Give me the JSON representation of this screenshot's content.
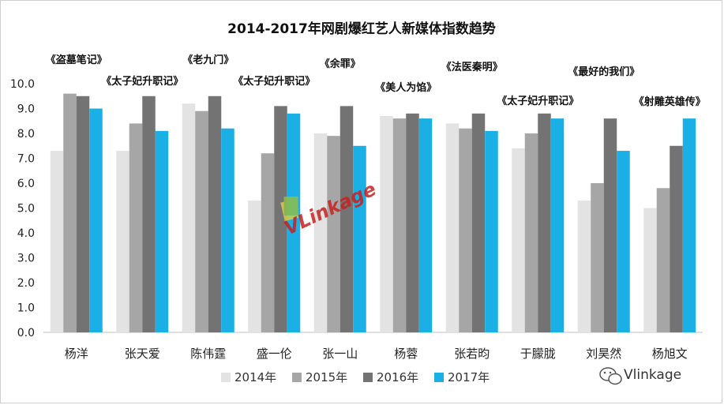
{
  "chart_data": {
    "type": "bar",
    "title": "2014-2017年网剧爆红艺人新媒体指数趋势",
    "categories": [
      "杨洋",
      "张天爱",
      "陈伟霆",
      "盛一伦",
      "张一山",
      "杨蓉",
      "张若昀",
      "于朦胧",
      "刘昊然",
      "杨旭文"
    ],
    "annotations": [
      "《盗墓笔记》",
      "《太子妃升职记》",
      "《老九门》",
      "《太子妃升职记》",
      "《余罪》",
      "《美人为馅》",
      "《法医秦明》",
      "《太子妃升职记》",
      "《最好的我们》",
      "《射雕英雄传》"
    ],
    "series": [
      {
        "name": "2014年",
        "color": "#e3e3e3",
        "values": [
          7.3,
          7.3,
          9.2,
          5.3,
          8.0,
          8.7,
          8.4,
          7.4,
          5.3,
          5.0
        ]
      },
      {
        "name": "2015年",
        "color": "#a6a6a6",
        "values": [
          9.6,
          8.4,
          8.9,
          7.2,
          7.9,
          8.6,
          8.2,
          8.0,
          6.0,
          5.8
        ]
      },
      {
        "name": "2016年",
        "color": "#737373",
        "values": [
          9.5,
          9.5,
          9.5,
          9.1,
          9.1,
          8.8,
          8.8,
          8.8,
          8.6,
          7.5
        ]
      },
      {
        "name": "2017年",
        "color": "#1ab0e5",
        "values": [
          9.0,
          8.1,
          8.2,
          8.8,
          7.5,
          8.6,
          8.1,
          8.6,
          7.3,
          8.6
        ]
      }
    ],
    "yticks": [
      "0.0",
      "1.0",
      "2.0",
      "3.0",
      "4.0",
      "5.0",
      "6.0",
      "7.0",
      "8.0",
      "9.0",
      "10.0"
    ],
    "ylim": [
      0,
      10
    ],
    "grid": false,
    "legend_position": "bottom"
  },
  "watermark": {
    "center_logo_text": "VLinkage",
    "corner_text": "Vlinkage"
  }
}
